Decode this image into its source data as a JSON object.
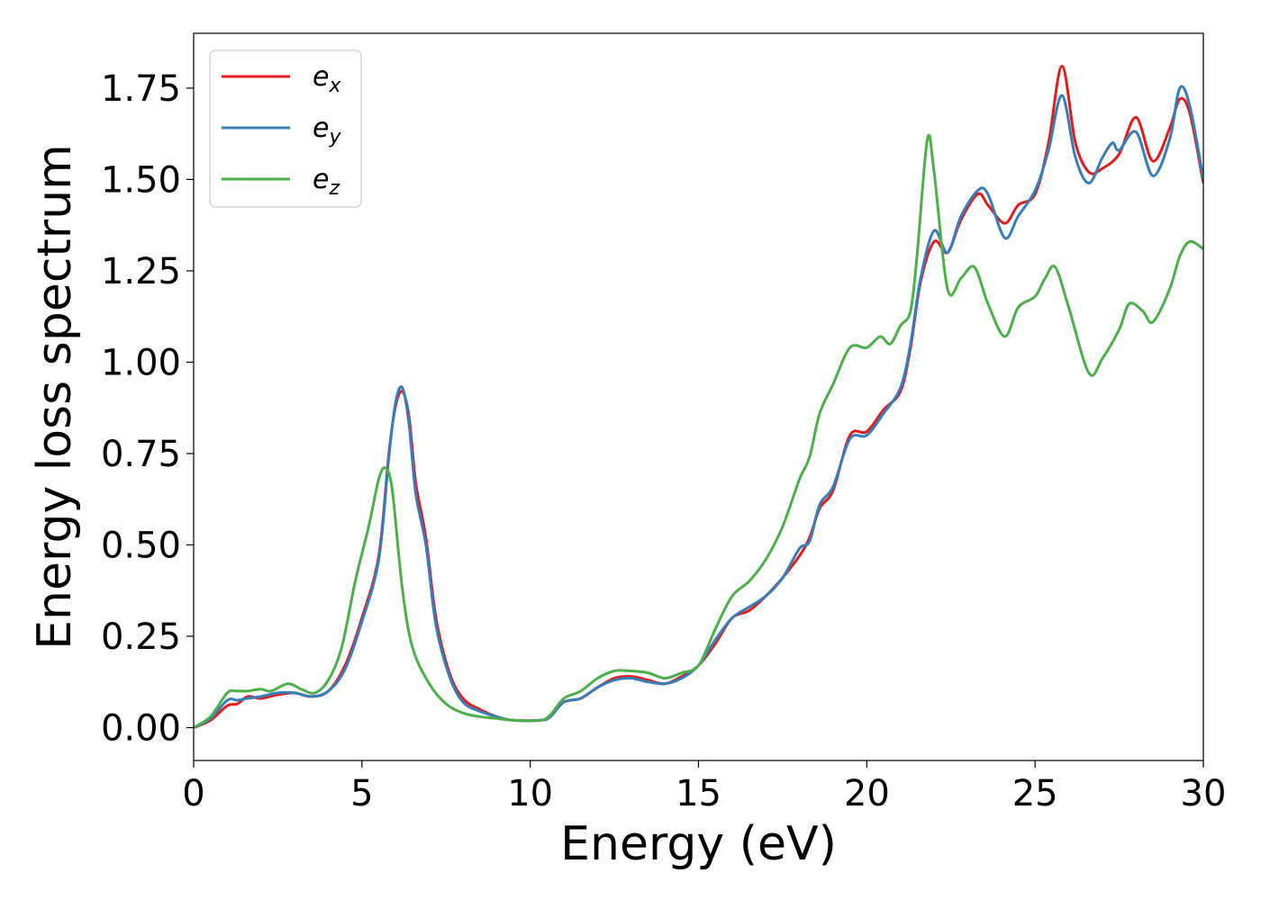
{
  "chart_data": {
    "type": "line",
    "title": "",
    "xlabel": "Energy (eV)",
    "ylabel": "Energy loss spectrum",
    "xlim": [
      0,
      30
    ],
    "ylim": [
      -0.09,
      1.9
    ],
    "xticks": [
      0,
      5,
      10,
      15,
      20,
      25,
      30
    ],
    "xtick_labels": [
      "0",
      "5",
      "10",
      "15",
      "20",
      "25",
      "30"
    ],
    "yticks": [
      0,
      0.25,
      0.5,
      0.75,
      1.0,
      1.25,
      1.5,
      1.75
    ],
    "ytick_labels": [
      "0.00",
      "0.25",
      "0.50",
      "0.75",
      "1.00",
      "1.25",
      "1.50",
      "1.75"
    ],
    "grid": false,
    "legend_position": "top-left",
    "series": [
      {
        "name": "e",
        "subscript": "x",
        "color": "#e41a1c",
        "points": [
          [
            0,
            0
          ],
          [
            0.5,
            0.02
          ],
          [
            1,
            0.06
          ],
          [
            1.3,
            0.065
          ],
          [
            1.6,
            0.085
          ],
          [
            2,
            0.08
          ],
          [
            2.5,
            0.09
          ],
          [
            3,
            0.095
          ],
          [
            3.5,
            0.085
          ],
          [
            4,
            0.1
          ],
          [
            4.5,
            0.17
          ],
          [
            5,
            0.3
          ],
          [
            5.5,
            0.47
          ],
          [
            5.8,
            0.75
          ],
          [
            6,
            0.88
          ],
          [
            6.2,
            0.92
          ],
          [
            6.4,
            0.85
          ],
          [
            6.6,
            0.67
          ],
          [
            6.9,
            0.52
          ],
          [
            7.2,
            0.3
          ],
          [
            7.6,
            0.15
          ],
          [
            8,
            0.08
          ],
          [
            8.5,
            0.05
          ],
          [
            9,
            0.03
          ],
          [
            9.5,
            0.02
          ],
          [
            10.3,
            0.02
          ],
          [
            10.6,
            0.03
          ],
          [
            11,
            0.07
          ],
          [
            11.5,
            0.08
          ],
          [
            12,
            0.11
          ],
          [
            12.5,
            0.135
          ],
          [
            13,
            0.14
          ],
          [
            13.5,
            0.13
          ],
          [
            14,
            0.12
          ],
          [
            14.5,
            0.14
          ],
          [
            15,
            0.17
          ],
          [
            15.5,
            0.23
          ],
          [
            16,
            0.3
          ],
          [
            16.5,
            0.32
          ],
          [
            17,
            0.36
          ],
          [
            17.5,
            0.41
          ],
          [
            18,
            0.47
          ],
          [
            18.3,
            0.52
          ],
          [
            18.6,
            0.6
          ],
          [
            19,
            0.65
          ],
          [
            19.5,
            0.8
          ],
          [
            20,
            0.81
          ],
          [
            20.5,
            0.87
          ],
          [
            21,
            0.92
          ],
          [
            21.3,
            1.04
          ],
          [
            21.6,
            1.22
          ],
          [
            22,
            1.33
          ],
          [
            22.4,
            1.3
          ],
          [
            22.8,
            1.39
          ],
          [
            23.3,
            1.46
          ],
          [
            23.6,
            1.43
          ],
          [
            24.1,
            1.38
          ],
          [
            24.5,
            1.43
          ],
          [
            25,
            1.46
          ],
          [
            25.4,
            1.6
          ],
          [
            25.8,
            1.81
          ],
          [
            26.2,
            1.6
          ],
          [
            26.6,
            1.52
          ],
          [
            27,
            1.53
          ],
          [
            27.5,
            1.57
          ],
          [
            28,
            1.67
          ],
          [
            28.5,
            1.55
          ],
          [
            29,
            1.64
          ],
          [
            29.3,
            1.72
          ],
          [
            29.6,
            1.68
          ],
          [
            30,
            1.49
          ]
        ]
      },
      {
        "name": "e",
        "subscript": "y",
        "color": "#377eb8",
        "points": [
          [
            0,
            0
          ],
          [
            0.5,
            0.025
          ],
          [
            1,
            0.075
          ],
          [
            1.3,
            0.075
          ],
          [
            1.6,
            0.08
          ],
          [
            2,
            0.085
          ],
          [
            2.5,
            0.095
          ],
          [
            3,
            0.095
          ],
          [
            3.5,
            0.085
          ],
          [
            4,
            0.1
          ],
          [
            4.5,
            0.16
          ],
          [
            5,
            0.29
          ],
          [
            5.5,
            0.46
          ],
          [
            5.8,
            0.74
          ],
          [
            6,
            0.89
          ],
          [
            6.2,
            0.93
          ],
          [
            6.4,
            0.83
          ],
          [
            6.6,
            0.64
          ],
          [
            6.9,
            0.5
          ],
          [
            7.2,
            0.28
          ],
          [
            7.6,
            0.14
          ],
          [
            8,
            0.07
          ],
          [
            8.5,
            0.045
          ],
          [
            9,
            0.03
          ],
          [
            9.5,
            0.02
          ],
          [
            10.3,
            0.02
          ],
          [
            10.6,
            0.03
          ],
          [
            11,
            0.07
          ],
          [
            11.5,
            0.08
          ],
          [
            12,
            0.11
          ],
          [
            12.5,
            0.13
          ],
          [
            13,
            0.135
          ],
          [
            13.5,
            0.125
          ],
          [
            14,
            0.12
          ],
          [
            14.5,
            0.135
          ],
          [
            15,
            0.17
          ],
          [
            15.5,
            0.24
          ],
          [
            16,
            0.3
          ],
          [
            16.5,
            0.33
          ],
          [
            17,
            0.36
          ],
          [
            17.5,
            0.41
          ],
          [
            18,
            0.49
          ],
          [
            18.3,
            0.51
          ],
          [
            18.6,
            0.61
          ],
          [
            19,
            0.66
          ],
          [
            19.5,
            0.79
          ],
          [
            20,
            0.8
          ],
          [
            20.5,
            0.86
          ],
          [
            21,
            0.93
          ],
          [
            21.3,
            1.05
          ],
          [
            21.6,
            1.23
          ],
          [
            22,
            1.36
          ],
          [
            22.4,
            1.3
          ],
          [
            22.8,
            1.4
          ],
          [
            23.3,
            1.47
          ],
          [
            23.6,
            1.46
          ],
          [
            24.1,
            1.34
          ],
          [
            24.5,
            1.4
          ],
          [
            25,
            1.47
          ],
          [
            25.4,
            1.58
          ],
          [
            25.8,
            1.73
          ],
          [
            26.2,
            1.56
          ],
          [
            26.6,
            1.49
          ],
          [
            27,
            1.56
          ],
          [
            27.3,
            1.6
          ],
          [
            27.5,
            1.58
          ],
          [
            28,
            1.63
          ],
          [
            28.5,
            1.51
          ],
          [
            29,
            1.61
          ],
          [
            29.3,
            1.75
          ],
          [
            29.6,
            1.7
          ],
          [
            30,
            1.5
          ]
        ]
      },
      {
        "name": "e",
        "subscript": "z",
        "color": "#4daf4a",
        "points": [
          [
            0,
            0
          ],
          [
            0.5,
            0.03
          ],
          [
            1,
            0.095
          ],
          [
            1.3,
            0.1
          ],
          [
            1.6,
            0.1
          ],
          [
            2,
            0.105
          ],
          [
            2.3,
            0.1
          ],
          [
            2.8,
            0.12
          ],
          [
            3.2,
            0.105
          ],
          [
            3.6,
            0.095
          ],
          [
            4,
            0.13
          ],
          [
            4.4,
            0.22
          ],
          [
            4.8,
            0.4
          ],
          [
            5.2,
            0.55
          ],
          [
            5.5,
            0.68
          ],
          [
            5.7,
            0.71
          ],
          [
            5.9,
            0.65
          ],
          [
            6.2,
            0.38
          ],
          [
            6.5,
            0.22
          ],
          [
            7,
            0.12
          ],
          [
            7.5,
            0.065
          ],
          [
            8,
            0.04
          ],
          [
            8.5,
            0.03
          ],
          [
            9,
            0.025
          ],
          [
            9.5,
            0.02
          ],
          [
            10.3,
            0.02
          ],
          [
            10.6,
            0.035
          ],
          [
            11,
            0.08
          ],
          [
            11.5,
            0.1
          ],
          [
            12,
            0.135
          ],
          [
            12.5,
            0.155
          ],
          [
            13,
            0.155
          ],
          [
            13.5,
            0.15
          ],
          [
            14,
            0.135
          ],
          [
            14.5,
            0.15
          ],
          [
            15,
            0.17
          ],
          [
            15.5,
            0.27
          ],
          [
            16,
            0.36
          ],
          [
            16.5,
            0.4
          ],
          [
            17,
            0.46
          ],
          [
            17.5,
            0.55
          ],
          [
            18,
            0.68
          ],
          [
            18.3,
            0.74
          ],
          [
            18.6,
            0.86
          ],
          [
            19,
            0.94
          ],
          [
            19.5,
            1.04
          ],
          [
            20,
            1.04
          ],
          [
            20.4,
            1.07
          ],
          [
            20.7,
            1.05
          ],
          [
            21,
            1.1
          ],
          [
            21.3,
            1.14
          ],
          [
            21.5,
            1.3
          ],
          [
            21.8,
            1.61
          ],
          [
            22,
            1.52
          ],
          [
            22.4,
            1.2
          ],
          [
            22.8,
            1.23
          ],
          [
            23.2,
            1.26
          ],
          [
            23.6,
            1.16
          ],
          [
            24.1,
            1.07
          ],
          [
            24.5,
            1.15
          ],
          [
            25,
            1.18
          ],
          [
            25.3,
            1.23
          ],
          [
            25.6,
            1.26
          ],
          [
            26,
            1.15
          ],
          [
            26.6,
            0.97
          ],
          [
            27,
            1.01
          ],
          [
            27.5,
            1.09
          ],
          [
            27.8,
            1.16
          ],
          [
            28.2,
            1.14
          ],
          [
            28.5,
            1.11
          ],
          [
            29,
            1.2
          ],
          [
            29.3,
            1.29
          ],
          [
            29.6,
            1.33
          ],
          [
            30,
            1.31
          ]
        ]
      }
    ]
  }
}
